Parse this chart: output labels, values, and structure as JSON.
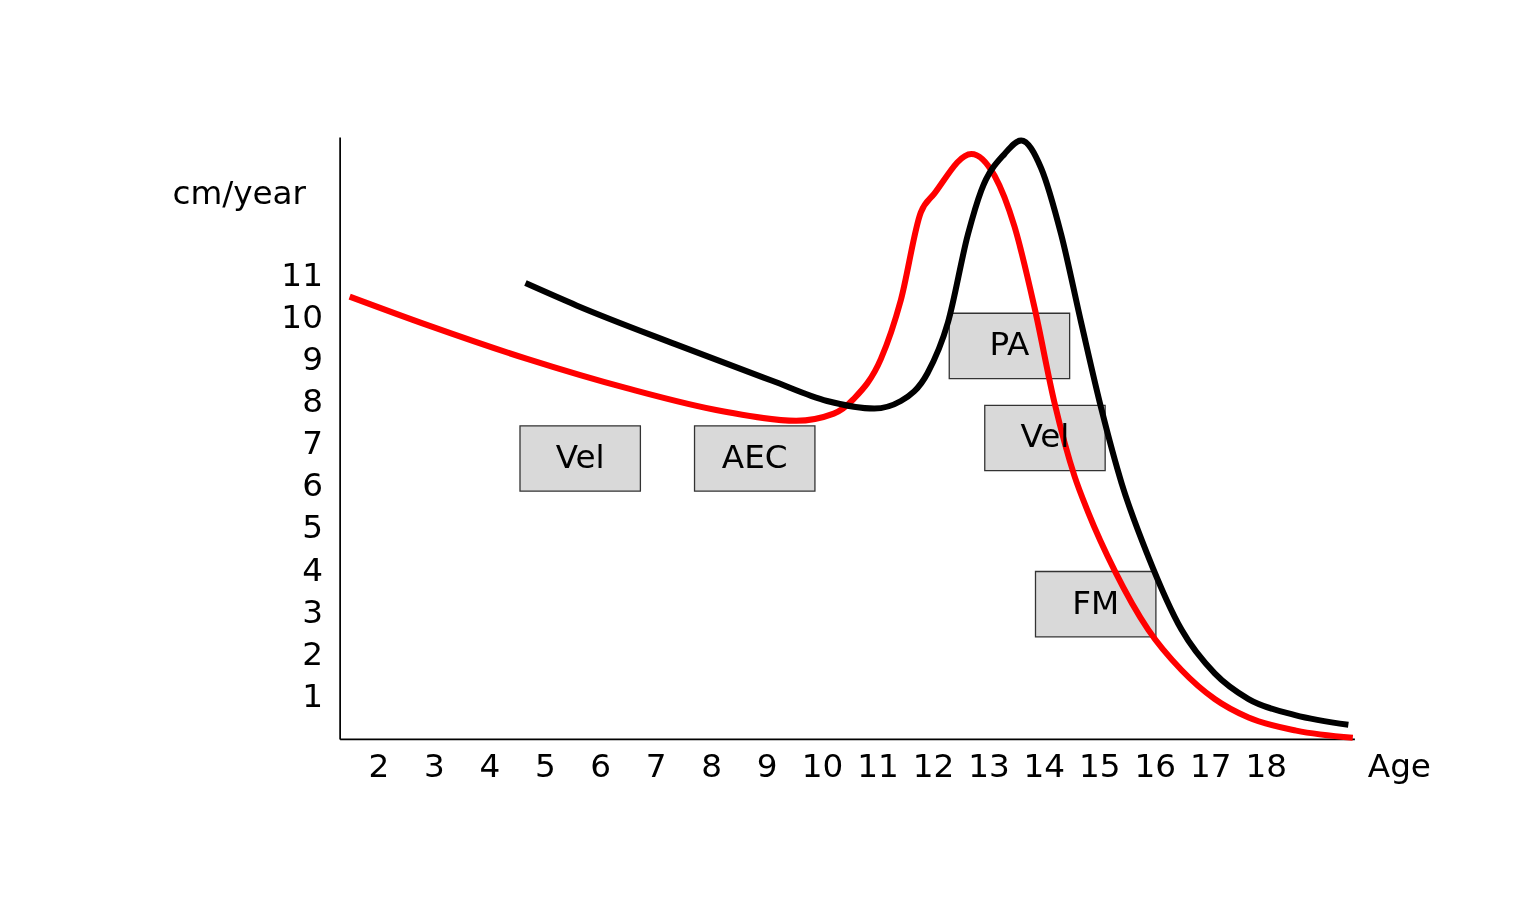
{
  "chart_data": {
    "type": "line",
    "xlabel": "Age",
    "ylabel": "cm/year",
    "xlim": [
      1.3,
      19.6
    ],
    "xticks": [
      2,
      3,
      4,
      5,
      6,
      7,
      8,
      9,
      10,
      11,
      12,
      13,
      14,
      15,
      16,
      17,
      18
    ],
    "ylim": [
      0,
      14.3
    ],
    "yticks": [
      1,
      2,
      3,
      4,
      5,
      6,
      7,
      8,
      9,
      10,
      11
    ],
    "grid": false,
    "legend": false,
    "marker": "none",
    "line_style": "solid",
    "series": [
      {
        "color": "#ff0000",
        "x": [
          1.48,
          2.91,
          4.68,
          6.46,
          8.23,
          9.53,
          10.21,
          10.57,
          11.06,
          11.42,
          11.78,
          12.02,
          12.69,
          13.11,
          13.47,
          13.83,
          14.19,
          14.55,
          14.8,
          15.28,
          15.88,
          16.48,
          17.08,
          17.69,
          18.55,
          19.57
        ],
        "values": [
          10.51,
          9.82,
          9.03,
          8.34,
          7.78,
          7.56,
          7.73,
          8.08,
          9.03,
          10.43,
          12.51,
          12.95,
          13.9,
          13.38,
          12.17,
          10.25,
          7.99,
          6.25,
          5.38,
          3.99,
          2.6,
          1.64,
          0.95,
          0.51,
          0.2,
          0.03
        ]
      },
      {
        "color": "#000000",
        "x": [
          4.65,
          5.57,
          7.35,
          9.1,
          10.09,
          10.94,
          11.42,
          11.9,
          12.27,
          12.63,
          12.87,
          13.29,
          13.59,
          13.95,
          14.31,
          14.67,
          15.04,
          15.4,
          15.88,
          16.48,
          17.08,
          17.69,
          18.53,
          19.49
        ],
        "values": [
          10.83,
          10.3,
          9.38,
          8.51,
          8.03,
          7.85,
          8.03,
          8.69,
          9.9,
          11.99,
          13.03,
          13.9,
          14.22,
          13.56,
          11.99,
          9.9,
          7.82,
          6.08,
          4.34,
          2.6,
          1.56,
          0.95,
          0.57,
          0.34
        ]
      }
    ],
    "annotations": [
      "Vel",
      "AEC",
      "PA",
      "Vel",
      "FM"
    ]
  }
}
